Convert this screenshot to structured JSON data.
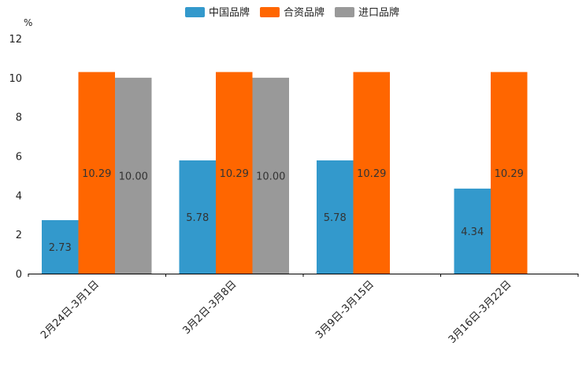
{
  "chart_data": {
    "type": "bar",
    "ylabel": "%",
    "ylim": [
      0,
      12
    ],
    "yticks": [
      "0",
      "2",
      "4",
      "6",
      "8",
      "10",
      "12"
    ],
    "categories": [
      "2月24日-3月1日",
      "3月2日-3月8日",
      "3月9日-3月15日",
      "3月16日-3月22日"
    ],
    "series": [
      {
        "name": "中国品牌",
        "color": "#3399cc",
        "values": [
          2.73,
          5.78,
          5.78,
          4.34
        ],
        "labels": [
          "2.73",
          "5.78",
          "5.78",
          "4.34"
        ]
      },
      {
        "name": "合资品牌",
        "color": "#ff6600",
        "values": [
          10.29,
          10.29,
          10.29,
          10.29
        ],
        "labels": [
          "10.29",
          "10.29",
          "10.29",
          "10.29"
        ]
      },
      {
        "name": "进口品牌",
        "color": "#999999",
        "values": [
          10.0,
          10.0,
          null,
          null
        ],
        "labels": [
          "10.00",
          "10.00",
          null,
          null
        ]
      }
    ],
    "legend_position": "top-center",
    "grid": false
  }
}
